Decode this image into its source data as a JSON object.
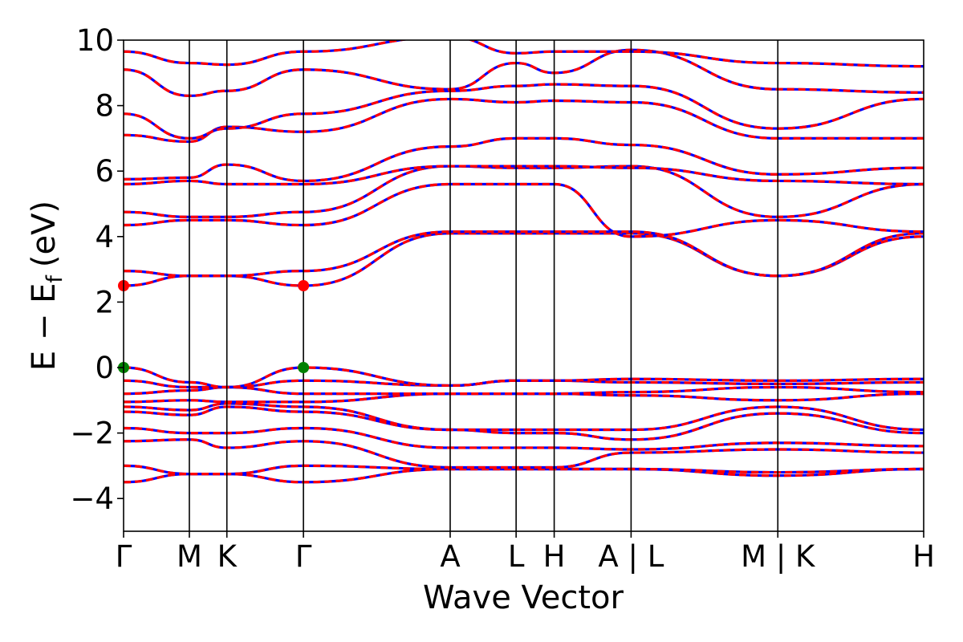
{
  "chart_data": {
    "type": "line",
    "xlabel": "Wave Vector",
    "ylabel": "E − E",
    "ylabel_sub": "f",
    "ylabel_unit": "(eV)",
    "ylim": [
      -5,
      10
    ],
    "yticks": [
      -4,
      -2,
      0,
      2,
      4,
      6,
      8,
      10
    ],
    "ytick_labels": [
      "−4",
      "−2",
      "0",
      "2",
      "4",
      "6",
      "8",
      "10"
    ],
    "xlim": [
      0,
      1
    ],
    "kpoints": [
      {
        "label": "Γ",
        "x": 0.0
      },
      {
        "label": "M",
        "x": 0.0822
      },
      {
        "label": "K",
        "x": 0.1291
      },
      {
        "label": "Γ",
        "x": 0.2248
      },
      {
        "label": "A",
        "x": 0.4082
      },
      {
        "label": "L",
        "x": 0.4906
      },
      {
        "label": "H",
        "x": 0.5382
      },
      {
        "label": "A | L",
        "x": 0.6343
      },
      {
        "label": "M | K",
        "x": 0.8177
      },
      {
        "label": "H",
        "x": 1.0
      }
    ],
    "legend": "none",
    "grid": false,
    "line_colors": {
      "primary": "#ff0000",
      "secondary": "#0000ff"
    },
    "markers": [
      {
        "x": 0.0,
        "y": 2.5,
        "color": "#ff0000",
        "name": "conduction band minimum"
      },
      {
        "x": 0.2248,
        "y": 2.5,
        "color": "#ff0000",
        "name": "conduction band minimum"
      },
      {
        "x": 0.0,
        "y": 0.0,
        "color": "#008000",
        "name": "valence band maximum"
      },
      {
        "x": 0.2248,
        "y": 0.0,
        "color": "#008000",
        "name": "valence band maximum"
      }
    ],
    "bands_x": [
      0.0,
      0.0822,
      0.1291,
      0.2248,
      0.4082,
      0.4906,
      0.5382,
      0.6343,
      0.8177,
      1.0
    ],
    "bands": [
      [
        -3.5,
        -3.25,
        -3.25,
        -3.5,
        -3.1,
        -3.1,
        -3.1,
        -3.1,
        -3.3,
        -3.1
      ],
      [
        -3.0,
        -3.25,
        -3.25,
        -3.0,
        -3.1,
        -3.1,
        -3.1,
        -3.1,
        -3.2,
        -3.1
      ],
      [
        -2.25,
        -2.2,
        -2.45,
        -2.25,
        -3.05,
        -3.05,
        -3.05,
        -2.6,
        -2.5,
        -2.6
      ],
      [
        -1.85,
        -2.0,
        -2.0,
        -1.85,
        -2.45,
        -2.45,
        -2.45,
        -2.5,
        -2.3,
        -2.4
      ],
      [
        -1.35,
        -1.45,
        -1.2,
        -1.35,
        -1.9,
        -2.0,
        -2.0,
        -2.2,
        -1.4,
        -2.0
      ],
      [
        -1.2,
        -1.3,
        -1.1,
        -1.2,
        -1.9,
        -1.9,
        -1.9,
        -1.9,
        -1.2,
        -1.9
      ],
      [
        -1.05,
        -1.0,
        -1.05,
        -1.05,
        -0.8,
        -0.8,
        -0.8,
        -0.85,
        -1.0,
        -0.8
      ],
      [
        -0.8,
        -0.7,
        -0.6,
        -0.8,
        -0.8,
        -0.8,
        -0.8,
        -0.75,
        -0.6,
        -0.75
      ],
      [
        -0.4,
        -0.6,
        -0.6,
        -0.4,
        -0.55,
        -0.4,
        -0.4,
        -0.45,
        -0.5,
        -0.45
      ],
      [
        0.0,
        -0.45,
        -0.6,
        0.0,
        -0.55,
        -0.4,
        -0.4,
        -0.35,
        -0.4,
        -0.35
      ],
      [
        2.5,
        2.8,
        2.8,
        2.5,
        4.1,
        4.1,
        4.1,
        4.1,
        2.8,
        4.0
      ],
      [
        2.95,
        2.8,
        2.8,
        2.95,
        4.15,
        4.15,
        4.15,
        4.15,
        2.8,
        4.1
      ],
      [
        4.35,
        4.5,
        4.5,
        4.35,
        5.6,
        5.6,
        5.6,
        4.0,
        4.5,
        4.15
      ],
      [
        4.75,
        4.6,
        4.6,
        4.75,
        6.15,
        6.1,
        6.1,
        6.15,
        4.6,
        5.6
      ],
      [
        5.6,
        5.7,
        5.6,
        5.6,
        6.15,
        6.15,
        6.15,
        6.1,
        5.7,
        5.6
      ],
      [
        5.75,
        5.8,
        6.2,
        5.7,
        6.75,
        7.0,
        7.0,
        6.8,
        5.9,
        6.1
      ],
      [
        7.1,
        6.9,
        7.35,
        7.2,
        8.2,
        8.1,
        8.15,
        8.1,
        7.0,
        7.0
      ],
      [
        7.75,
        7.0,
        7.3,
        7.75,
        8.45,
        8.6,
        8.65,
        8.6,
        7.3,
        8.2
      ],
      [
        9.1,
        8.3,
        8.45,
        9.1,
        8.5,
        9.3,
        9.0,
        9.7,
        8.5,
        8.4
      ],
      [
        9.65,
        9.3,
        9.25,
        9.65,
        10.1,
        9.6,
        9.65,
        9.65,
        9.3,
        9.2
      ]
    ]
  }
}
